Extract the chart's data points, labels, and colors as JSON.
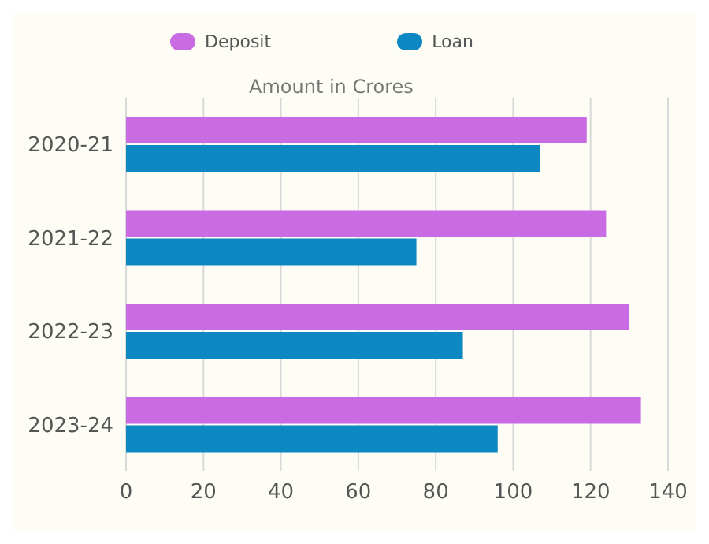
{
  "chart_data": {
    "type": "bar",
    "orientation": "horizontal",
    "xlabel": "Amount in Crores",
    "categories": [
      "2020-21",
      "2021-22",
      "2022-23",
      "2023-24"
    ],
    "series": [
      {
        "name": "Deposit",
        "color": "#c96ce3",
        "values": [
          119,
          124,
          130,
          133
        ]
      },
      {
        "name": "Loan",
        "color": "#0e88c2",
        "values": [
          107,
          75,
          87,
          96
        ]
      }
    ],
    "xlim": [
      0,
      140
    ],
    "xticks": [
      0,
      20,
      40,
      60,
      80,
      100,
      120,
      140
    ],
    "grid": "x",
    "legend": "top"
  }
}
